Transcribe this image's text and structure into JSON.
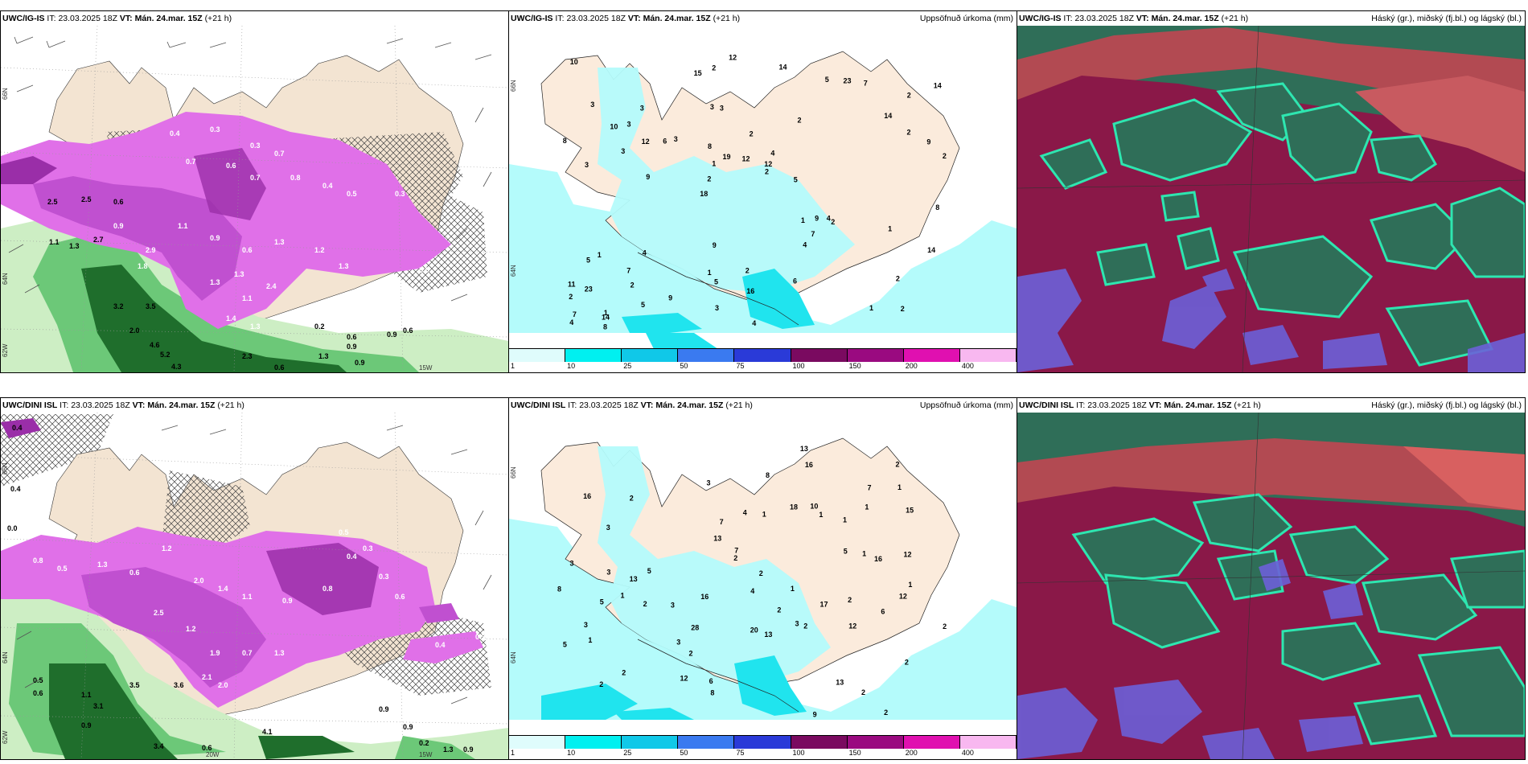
{
  "panels": {
    "p1": {
      "model": "UWC/IG-IS",
      "it_label": "IT:",
      "it_value": "23.03.2025 18Z",
      "vt_label": "VT:",
      "vt_value": "Mán. 24.mar. 15Z",
      "lead": "(+21 h)",
      "lat_labels": [
        "66N",
        "64N",
        "62W"
      ],
      "lon_labels": [
        "15W"
      ]
    },
    "p2": {
      "model": "UWC/IG-IS",
      "it_label": "IT:",
      "it_value": "23.03.2025 18Z",
      "vt_label": "VT:",
      "vt_value": "Mán. 24.mar. 15Z",
      "lead": "(+21 h)",
      "title_right": "Uppsöfnuð úrkoma (mm)",
      "lat_labels": [
        "66N",
        "64N"
      ]
    },
    "p3": {
      "model": "UWC/IG-IS",
      "it_label": "IT:",
      "it_value": "23.03.2025 18Z",
      "vt_label": "VT:",
      "vt_value": "Mán. 24.mar. 15Z",
      "lead": "(+21 h)",
      "title_right": "Háský (gr.), miðský (fj.bl.) og lágský (bl.)"
    },
    "p4": {
      "model": "UWC/DINI ISL",
      "it_label": "IT:",
      "it_value": "23.03.2025 18Z",
      "vt_label": "VT:",
      "vt_value": "Mán. 24.mar. 15Z",
      "lead": "(+21 h)",
      "lat_labels": [
        "66N",
        "64N",
        "62W"
      ],
      "lon_labels": [
        "20W",
        "15W"
      ]
    },
    "p5": {
      "model": "UWC/DINI ISL",
      "it_label": "IT:",
      "it_value": "23.03.2025 18Z",
      "vt_label": "VT:",
      "vt_value": "Mán. 24.mar. 15Z",
      "lead": "(+21 h)",
      "title_right": "Uppsöfnuð úrkoma (mm)",
      "lat_labels": [
        "66N",
        "64N"
      ]
    },
    "p6": {
      "model": "UWC/DINI ISL",
      "it_label": "IT:",
      "it_value": "23.03.2025 18Z",
      "vt_label": "VT:",
      "vt_value": "Mán. 24.mar. 15Z",
      "lead": "(+21 h)",
      "title_right": "Háský (gr.), miðský (fj.bl.) og lágský (bl.)"
    }
  },
  "colorbar": {
    "labels": [
      "1",
      "10",
      "25",
      "50",
      "75",
      "100",
      "150",
      "200",
      "400"
    ],
    "colors": [
      "#dffcfc",
      "#00f0f0",
      "#10c8e8",
      "#3a7af0",
      "#2a3ad8",
      "#7a0a60",
      "#9a0a80",
      "#e010b0",
      "#f8b8f0"
    ]
  },
  "precip_labels_top": [
    "2",
    "3",
    "2",
    "18",
    "2",
    "1",
    "3",
    "2",
    "1",
    "3",
    "2",
    "2",
    "3",
    "4",
    "2",
    "3",
    "2",
    "2",
    "1",
    "2",
    "2",
    "1",
    "1",
    "3",
    "5",
    "4",
    "1",
    "2",
    "4",
    "4",
    "6",
    "3",
    "4",
    "5",
    "9",
    "12",
    "7",
    "5",
    "2",
    "5",
    "14",
    "14",
    "7",
    "6",
    "7",
    "8",
    "4",
    "2",
    "7",
    "12",
    "9",
    "8",
    "3",
    "23",
    "14",
    "14",
    "15",
    "19",
    "14",
    "9",
    "9",
    "9",
    "12",
    "11",
    "10",
    "10",
    "8",
    "8",
    "16",
    "12",
    "23",
    "5",
    "1",
    "3"
  ],
  "precip_labels_bottom": [
    "2",
    "1",
    "3",
    "16",
    "2",
    "3",
    "2",
    "3",
    "1",
    "4",
    "1",
    "2",
    "2",
    "3",
    "1",
    "1",
    "2",
    "2",
    "3",
    "2",
    "2",
    "1",
    "1",
    "2",
    "1",
    "3",
    "2",
    "4",
    "2",
    "1",
    "2",
    "5",
    "3",
    "10",
    "7",
    "6",
    "12",
    "13",
    "7",
    "9",
    "28",
    "13",
    "12",
    "13",
    "16",
    "13",
    "15",
    "16",
    "18",
    "20",
    "17",
    "12",
    "12",
    "16",
    "13",
    "8",
    "8",
    "7",
    "2",
    "5",
    "6",
    "1",
    "2",
    "8",
    "5",
    "3",
    "5"
  ],
  "colors": {
    "land": "#f6e6d4",
    "precip_light": "#b4fbfb",
    "precip_mid": "#20e4ee",
    "magenta": "#e070e8",
    "magenta_dark": "#9a2ea8",
    "green_light": "#cdeec4",
    "green_mid": "#6cc878",
    "green_dark": "#1f6e2c",
    "cloud_high": "#8a1848",
    "cloud_mid": "#2f6e58",
    "cloud_low": "#6c60d8",
    "cloud_edge": "#2ee6b0"
  }
}
